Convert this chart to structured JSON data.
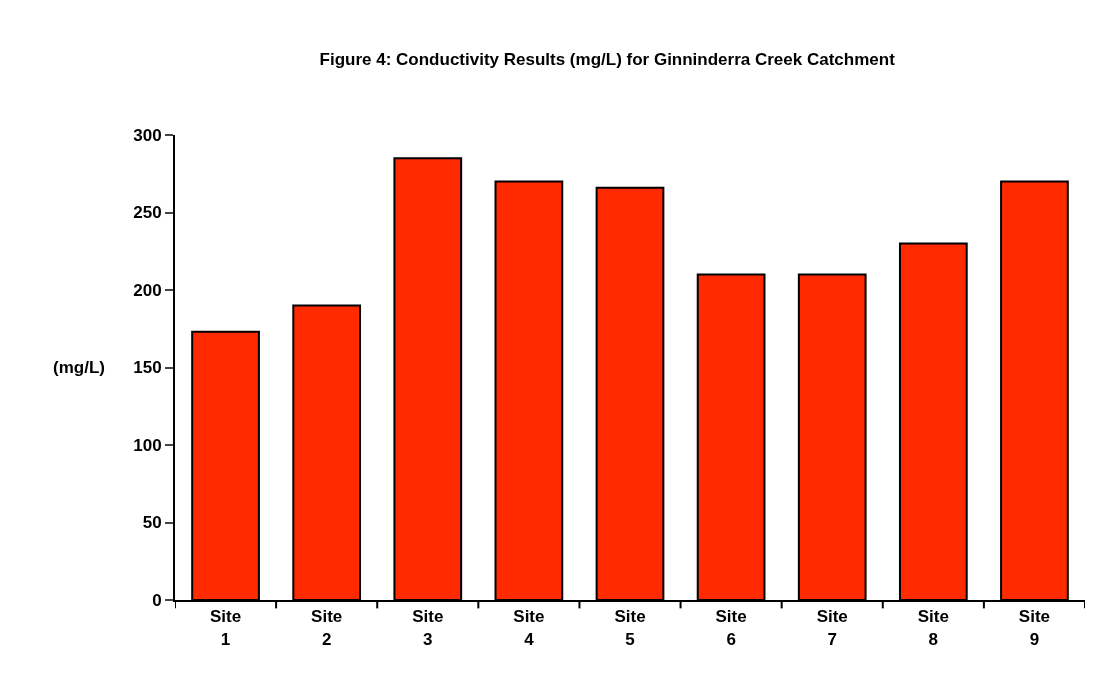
{
  "chart_data": {
    "type": "bar",
    "title": "Figure 4: Conductivity Results (mg/L) for Ginninderra Creek Catchment",
    "ylabel": "(mg/L)",
    "categories": [
      "Site 1",
      "Site 2",
      "Site 3",
      "Site 4",
      "Site 5",
      "Site 6",
      "Site 7",
      "Site 8",
      "Site 9"
    ],
    "values": [
      173,
      190,
      285,
      270,
      266,
      210,
      210,
      230,
      270
    ],
    "color": "#ff2a00",
    "ylim": [
      0,
      300
    ],
    "yticks": [
      0,
      50,
      100,
      150,
      200,
      250,
      300
    ],
    "grid": false,
    "legend": false
  }
}
